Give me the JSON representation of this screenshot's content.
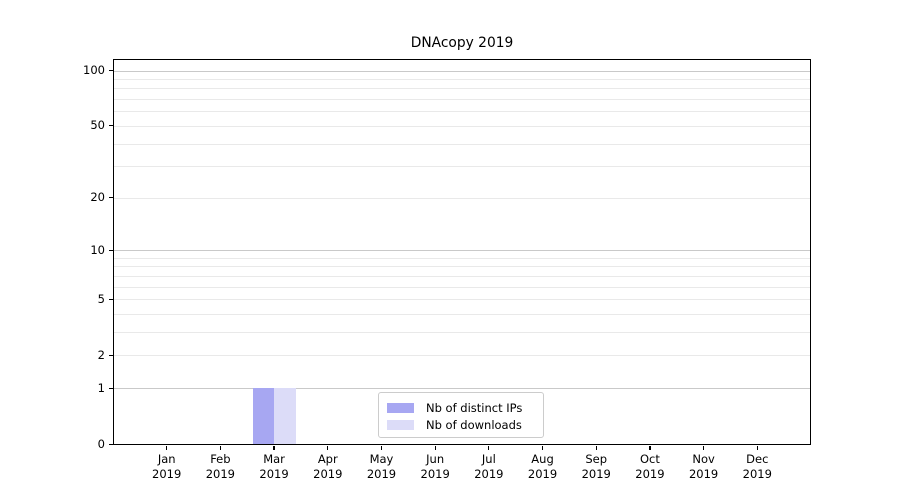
{
  "title": "DNAcopy 2019",
  "chart_data": {
    "type": "bar",
    "title": "DNAcopy 2019",
    "categories": [
      "Jan",
      "Feb",
      "Mar",
      "Apr",
      "May",
      "Jun",
      "Jul",
      "Aug",
      "Sep",
      "Oct",
      "Nov",
      "Dec"
    ],
    "year_label": "2019",
    "series": [
      {
        "name": "Nb of distinct IPs",
        "color": "#a7a7f2",
        "values": [
          0,
          0,
          1,
          0,
          0,
          0,
          0,
          0,
          0,
          0,
          0,
          0
        ]
      },
      {
        "name": "Nb of downloads",
        "color": "#dcdcf8",
        "values": [
          0,
          0,
          1,
          0,
          0,
          0,
          0,
          0,
          0,
          0,
          0,
          0
        ]
      }
    ],
    "y_scale": "log1p",
    "ylim": [
      0,
      100
    ],
    "y_labeled_ticks": [
      0,
      1,
      2,
      5,
      10,
      20,
      50,
      100
    ],
    "y_major_gridlines": [
      1,
      10,
      100
    ],
    "y_minor_gridlines": [
      2,
      3,
      4,
      5,
      6,
      7,
      8,
      9,
      20,
      30,
      40,
      50,
      60,
      70,
      80,
      90
    ],
    "grid": "horizontal",
    "legend": {
      "position": "bottom-center",
      "entries": [
        "Nb of distinct IPs",
        "Nb of downloads"
      ]
    },
    "colors": {
      "major_grid": "#c9c9c9",
      "minor_grid": "#e9e9e9",
      "spine": "#000000",
      "background": "#ffffff"
    }
  }
}
